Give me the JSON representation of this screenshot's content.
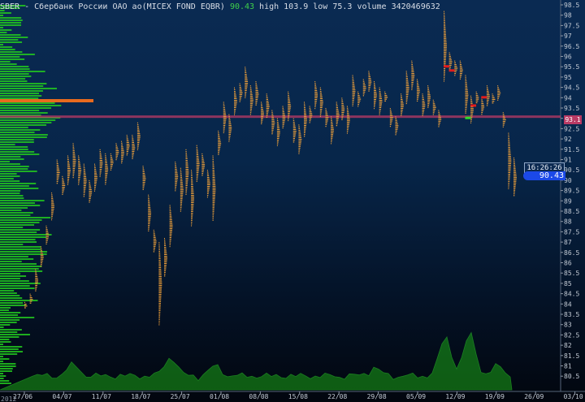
{
  "header": {
    "symbol": "SBER",
    "description": "- Сбербанк России ОАО ао(MICEX FOND EQBR)",
    "last": "90.43",
    "high": "high 103.9",
    "low": "low 75.3",
    "volume": "volume 3420469632"
  },
  "badges": {
    "time": "16:26:26",
    "price": "90.43",
    "level": "93.1"
  },
  "year_label": "2012",
  "colors": {
    "background_top": "#0a2a52",
    "candle_profile": "#f2a23a",
    "volume_profile": "#22c81e",
    "volume_area": "#1aa316",
    "level_line": "#b93a64",
    "poc_line": "#e86a1e",
    "price_badge": "#1b49e8"
  },
  "chart_data": {
    "type": "line",
    "title": "SBER - Сбербанк России ОАО ао(MICEX FOND EQBR)",
    "x_tick_labels": [
      "27/06",
      "04/07",
      "11/07",
      "18/07",
      "25/07",
      "01/08",
      "08/08",
      "15/08",
      "22/08",
      "29/08",
      "05/09",
      "12/09",
      "19/09",
      "26/09",
      "03/10"
    ],
    "y_tick_labels": [
      "98.5",
      "98",
      "97.5",
      "97",
      "96.5",
      "96",
      "95.5",
      "95",
      "94.5",
      "94",
      "93.5",
      "93",
      "92.5",
      "92",
      "91.5",
      "91",
      "90.5",
      "90",
      "89.5",
      "89",
      "88.5",
      "88",
      "87.5",
      "87",
      "86.5",
      "86",
      "85.5",
      "85",
      "84.5",
      "84",
      "83.5",
      "83",
      "82.5",
      "82",
      "81.5",
      "81",
      "80.5"
    ],
    "ylim": [
      80.5,
      98.5
    ],
    "y_axis_position": "right",
    "horizontal_level": 93.1,
    "last_price": 90.43,
    "series": [
      {
        "values": [
          [
            0,
            83.8,
            84.1
          ],
          [
            1,
            84.0,
            84.5
          ],
          [
            2,
            84.6,
            85.7
          ],
          [
            3,
            85.8,
            86.8
          ],
          [
            4,
            86.9,
            87.8
          ],
          [
            5,
            88.1,
            89.4
          ],
          [
            6,
            89.8,
            91.0
          ],
          [
            7,
            89.3,
            90.2
          ],
          [
            8,
            89.8,
            91.2
          ],
          [
            9,
            90.1,
            91.8
          ],
          [
            10,
            89.8,
            91.2
          ],
          [
            11,
            89.2,
            90.8
          ],
          [
            12,
            88.9,
            90.0
          ],
          [
            13,
            89.5,
            90.8
          ],
          [
            14,
            90.2,
            91.5
          ],
          [
            15,
            89.8,
            91.3
          ],
          [
            16,
            90.5,
            91.3
          ],
          [
            17,
            91.0,
            91.8
          ],
          [
            18,
            90.8,
            91.9
          ],
          [
            19,
            91.2,
            92.2
          ],
          [
            20,
            91.0,
            92.2
          ],
          [
            21,
            91.5,
            92.8
          ],
          [
            22,
            89.5,
            90.7
          ],
          [
            23,
            87.5,
            89.3
          ],
          [
            24,
            86.5,
            87.6
          ],
          [
            25,
            83.0,
            87.0
          ],
          [
            26,
            85.3,
            87.2
          ],
          [
            27,
            86.8,
            88.8
          ],
          [
            28,
            89.5,
            90.9
          ],
          [
            29,
            88.5,
            90.6
          ],
          [
            30,
            89.3,
            91.5
          ],
          [
            31,
            87.8,
            90.5
          ],
          [
            32,
            89.9,
            91.7
          ],
          [
            33,
            90.2,
            91.3
          ],
          [
            34,
            89.2,
            90.5
          ],
          [
            35,
            88.0,
            91.2
          ],
          [
            36,
            91.2,
            92.4
          ],
          [
            37,
            92.3,
            93.8
          ],
          [
            38,
            91.9,
            93.2
          ],
          [
            39,
            93.2,
            94.5
          ],
          [
            40,
            93.8,
            94.7
          ],
          [
            41,
            94.0,
            95.5
          ],
          [
            42,
            93.2,
            94.6
          ],
          [
            43,
            93.6,
            94.8
          ],
          [
            44,
            92.7,
            93.8
          ],
          [
            45,
            93.0,
            94.2
          ],
          [
            46,
            92.2,
            93.4
          ],
          [
            47,
            91.7,
            93.0
          ],
          [
            48,
            92.5,
            93.6
          ],
          [
            49,
            92.9,
            94.3
          ],
          [
            50,
            91.8,
            93.0
          ],
          [
            51,
            91.3,
            92.7
          ],
          [
            52,
            92.1,
            93.8
          ],
          [
            53,
            92.8,
            93.6
          ],
          [
            54,
            93.5,
            94.8
          ],
          [
            55,
            93.1,
            94.5
          ],
          [
            56,
            92.6,
            93.5
          ],
          [
            57,
            91.8,
            93.1
          ],
          [
            58,
            92.6,
            93.8
          ],
          [
            59,
            92.9,
            94.0
          ],
          [
            60,
            92.3,
            93.6
          ],
          [
            61,
            93.6,
            95.1
          ],
          [
            62,
            93.6,
            94.3
          ],
          [
            63,
            94.1,
            94.9
          ],
          [
            64,
            94.3,
            95.3
          ],
          [
            65,
            93.5,
            94.8
          ],
          [
            66,
            93.2,
            94.5
          ],
          [
            67,
            93.8,
            94.3
          ],
          [
            68,
            92.6,
            93.5
          ],
          [
            69,
            92.2,
            93.1
          ],
          [
            70,
            93.1,
            94.2
          ],
          [
            71,
            93.7,
            95.3
          ],
          [
            72,
            94.4,
            95.8
          ],
          [
            73,
            93.8,
            94.9
          ],
          [
            74,
            93.1,
            94.2
          ],
          [
            75,
            93.5,
            94.6
          ],
          [
            76,
            93.2,
            93.9
          ],
          [
            77,
            92.6,
            93.4
          ],
          [
            78,
            94.8,
            98.2
          ],
          [
            79,
            95.3,
            96.2
          ],
          [
            80,
            95.1,
            95.8
          ],
          [
            81,
            94.9,
            95.8
          ],
          [
            82,
            93.2,
            95.1
          ],
          [
            83,
            92.8,
            94.1
          ],
          [
            84,
            93.7,
            94.3
          ],
          [
            85,
            93.2,
            94.0
          ],
          [
            86,
            93.6,
            94.6
          ],
          [
            87,
            93.7,
            94.2
          ],
          [
            88,
            93.9,
            94.6
          ],
          [
            89,
            92.6,
            93.3
          ],
          [
            90,
            89.6,
            92.3
          ],
          [
            91,
            89.2,
            91.1
          ]
        ]
      }
    ]
  }
}
